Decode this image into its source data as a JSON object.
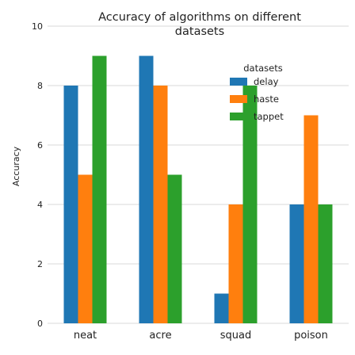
{
  "chart_data": {
    "type": "bar",
    "title_lines": [
      "Accuracy of algorithms on different",
      "datasets"
    ],
    "xlabel": "",
    "ylabel": "Accuracy",
    "ylim": [
      0,
      10
    ],
    "yticks": [
      "0",
      "2",
      "4",
      "6",
      "8",
      "10"
    ],
    "grid": true,
    "categories": [
      "neat",
      "acre",
      "squad",
      "poison"
    ],
    "legend": {
      "title": "datasets",
      "placement": "top-right"
    },
    "series": [
      {
        "name": "delay",
        "color": "#1f77b4",
        "values": [
          8,
          9,
          1,
          4
        ]
      },
      {
        "name": "haste",
        "color": "#ff7f0e",
        "values": [
          5,
          8,
          4,
          7
        ]
      },
      {
        "name": "tappet",
        "color": "#2ca02c",
        "values": [
          9,
          5,
          8,
          4
        ]
      }
    ]
  }
}
